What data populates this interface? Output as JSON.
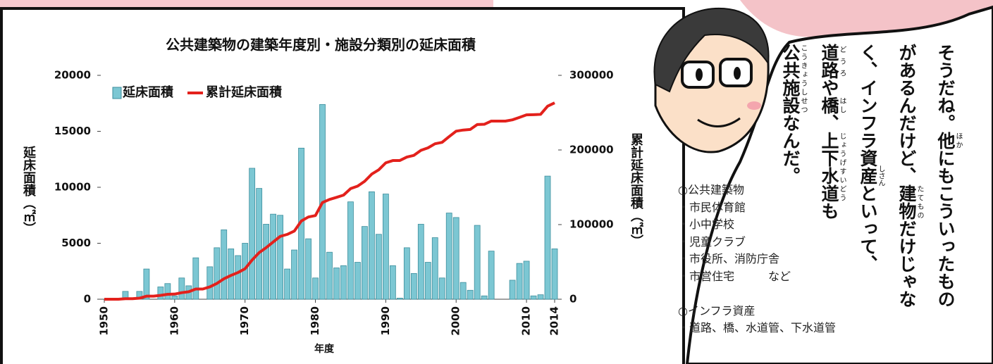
{
  "chart_data": {
    "type": "bar",
    "title": "公共建築物の建築年度別・施設分類別の延床面積",
    "y_label": "延床面積（㎡）",
    "y2_label": "累計延床面積（㎡）",
    "x_label": "年度",
    "x": [
      1950,
      1951,
      1952,
      1953,
      1954,
      1955,
      1956,
      1957,
      1958,
      1959,
      1960,
      1961,
      1962,
      1963,
      1964,
      1965,
      1966,
      1967,
      1968,
      1969,
      1970,
      1971,
      1972,
      1973,
      1974,
      1975,
      1976,
      1977,
      1978,
      1979,
      1980,
      1981,
      1982,
      1983,
      1984,
      1985,
      1986,
      1987,
      1988,
      1989,
      1990,
      1991,
      1992,
      1993,
      1994,
      1995,
      1996,
      1997,
      1998,
      1999,
      2000,
      2001,
      2002,
      2003,
      2004,
      2005,
      2006,
      2007,
      2008,
      2009,
      2010,
      2011,
      2012,
      2013,
      2014
    ],
    "series": [
      {
        "name": "延床面積",
        "color": "#7cc7d3",
        "values": [
          0,
          0,
          0,
          700,
          0,
          700,
          2700,
          0,
          1100,
          1400,
          300,
          1900,
          1200,
          3700,
          0,
          2900,
          4600,
          6200,
          4500,
          3900,
          5000,
          11700,
          9900,
          6700,
          7600,
          7500,
          2700,
          4400,
          13500,
          5400,
          1900,
          17400,
          4200,
          2800,
          3000,
          8700,
          3300,
          6500,
          9600,
          5800,
          9400,
          3000,
          100,
          4600,
          2300,
          6700,
          3300,
          5500,
          1900,
          7700,
          7300,
          1500,
          800,
          6600,
          300,
          4300,
          0,
          0,
          1700,
          3200,
          3400,
          300,
          400,
          11000,
          4500
        ]
      },
      {
        "name": "累計延床面積",
        "color": "#e3211c",
        "axis": "y2",
        "values": [
          0,
          0,
          0,
          700,
          700,
          1400,
          4100,
          4100,
          5200,
          6600,
          6900,
          8800,
          10000,
          13700,
          13700,
          16600,
          21200,
          27400,
          31900,
          35800,
          40800,
          52500,
          62400,
          69100,
          76700,
          84200,
          86900,
          91300,
          104800,
          110200,
          112100,
          129500,
          133700,
          136500,
          139500,
          148200,
          151500,
          158000,
          167600,
          173400,
          182800,
          185800,
          185900,
          190500,
          192800,
          199500,
          202800,
          208300,
          210200,
          217900,
          225200,
          226700,
          227500,
          234100,
          234400,
          238700,
          238700,
          238700,
          240400,
          243600,
          247000,
          247300,
          247700,
          258700,
          263200
        ]
      }
    ],
    "xlim": [
      1949.5,
      2014.5
    ],
    "xticks": [
      1950,
      1960,
      1970,
      1980,
      1990,
      2000,
      2010,
      2014
    ],
    "ylim": [
      0,
      20000
    ],
    "yticks": [
      0,
      5000,
      10000,
      15000,
      20000
    ],
    "y2lim": [
      0,
      300000
    ],
    "y2ticks": [
      0,
      100000,
      200000,
      300000
    ]
  },
  "speech": {
    "columns": [
      [
        {
          "text": "そうだね。"
        },
        {
          "text": "他",
          "ruby": "ほか"
        },
        {
          "text": "にもこういったもの"
        }
      ],
      [
        {
          "text": "があるんだけど、"
        },
        {
          "text": "建物",
          "ruby": "たてもの"
        },
        {
          "text": "だけじゃな"
        }
      ],
      [
        {
          "text": "く、インフラ資"
        },
        {
          "text": "産",
          "ruby": "しさん"
        },
        {
          "text": "といって、"
        }
      ],
      [
        {
          "text": "道路",
          "ruby": "どうろ"
        },
        {
          "text": "や"
        },
        {
          "text": "橋",
          "ruby": "はし"
        },
        {
          "text": "、"
        },
        {
          "text": "上下水道",
          "ruby": "じょうげすいどう"
        },
        {
          "text": "も"
        }
      ],
      [
        {
          "text": "公共施設",
          "ruby": "こうきょうしせつ"
        },
        {
          "text": "なんだ。"
        }
      ]
    ]
  },
  "list": [
    "○公共建築物",
    "・市民体育館",
    "・小中学校",
    "・児童クラブ",
    "・市役所、消防庁舎",
    "・市営住宅　　　など",
    "",
    "○インフラ資産",
    "・道路、橋、水道管、下水道管"
  ]
}
